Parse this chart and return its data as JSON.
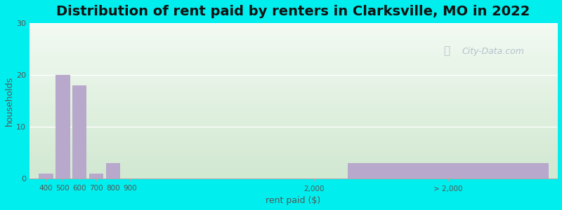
{
  "title": "Distribution of rent paid by renters in Clarksville, MO in 2022",
  "xlabel": "rent paid ($)",
  "ylabel": "households",
  "bar_color": "#b8a8cc",
  "background_outer": "#00eeee",
  "ylim": [
    0,
    30
  ],
  "yticks": [
    0,
    10,
    20,
    30
  ],
  "tick_labels": [
    "400",
    "500",
    "600",
    "700",
    "800",
    "900",
    "2,000",
    "> 2,000"
  ],
  "values": [
    1,
    20,
    18,
    1,
    3,
    0,
    0,
    3
  ],
  "watermark": "City-Data.com",
  "title_fontsize": 14,
  "axis_label_fontsize": 9,
  "positions": [
    400,
    500,
    600,
    700,
    800,
    900,
    2000,
    2800
  ],
  "bar_widths": [
    85,
    85,
    85,
    85,
    85,
    85,
    85,
    1200
  ],
  "xlim_left": 300,
  "xlim_right": 3450,
  "xtick_positions": [
    400,
    500,
    600,
    700,
    800,
    900,
    2000,
    2800
  ]
}
